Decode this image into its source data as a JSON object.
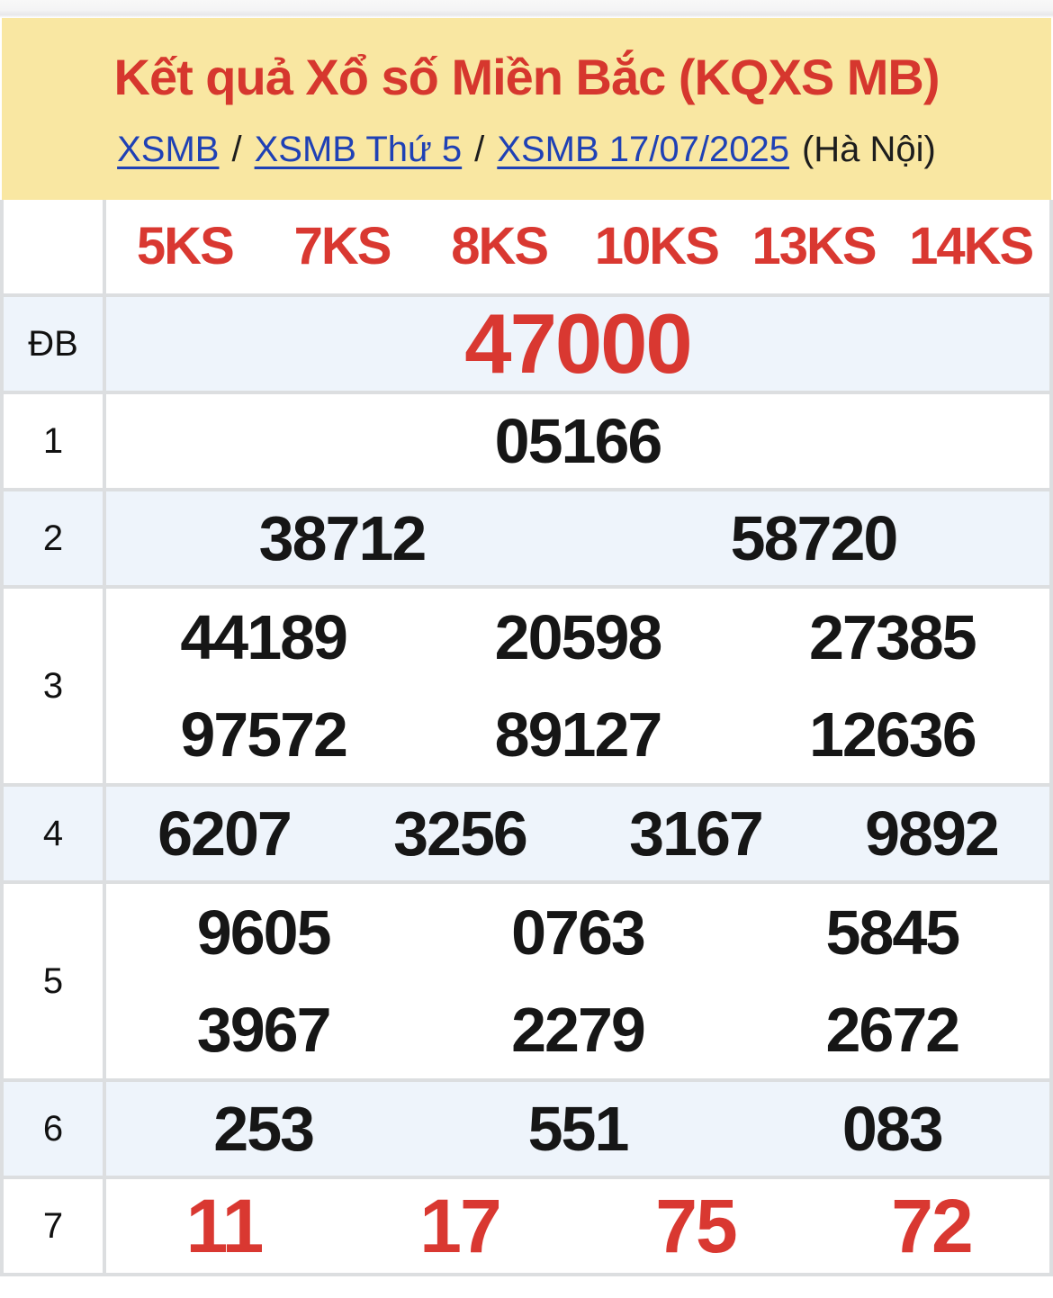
{
  "header": {
    "title": "Kết quả Xổ số Miền Bắc (KQXS MB)",
    "breadcrumb": {
      "links": [
        "XSMB",
        "XSMB Thứ 5",
        "XSMB 17/07/2025"
      ],
      "separator": "/",
      "suffix": "(Hà Nội)"
    }
  },
  "table": {
    "ks_links": [
      "5KS",
      "7KS",
      "8KS",
      "10KS",
      "13KS",
      "14KS"
    ],
    "rows": [
      {
        "label": "ĐB",
        "lines": [
          [
            "47000"
          ]
        ]
      },
      {
        "label": "1",
        "lines": [
          [
            "05166"
          ]
        ]
      },
      {
        "label": "2",
        "lines": [
          [
            "38712",
            "58720"
          ]
        ]
      },
      {
        "label": "3",
        "lines": [
          [
            "44189",
            "20598",
            "27385"
          ],
          [
            "97572",
            "89127",
            "12636"
          ]
        ]
      },
      {
        "label": "4",
        "lines": [
          [
            "6207",
            "3256",
            "3167",
            "9892"
          ]
        ]
      },
      {
        "label": "5",
        "lines": [
          [
            "9605",
            "0763",
            "5845"
          ],
          [
            "3967",
            "2279",
            "2672"
          ]
        ]
      },
      {
        "label": "6",
        "lines": [
          [
            "253",
            "551",
            "083"
          ]
        ]
      },
      {
        "label": "7",
        "lines": [
          [
            "11",
            "17",
            "75",
            "72"
          ]
        ]
      }
    ]
  },
  "colors": {
    "banner_yellow": "#f9e7a2",
    "accent_red": "#d6372e",
    "number_red": "#d93831",
    "link_blue": "#1f41b5",
    "row_shade": "#eef4fb",
    "border_gray": "#dcdee0",
    "text_black": "#161616"
  }
}
